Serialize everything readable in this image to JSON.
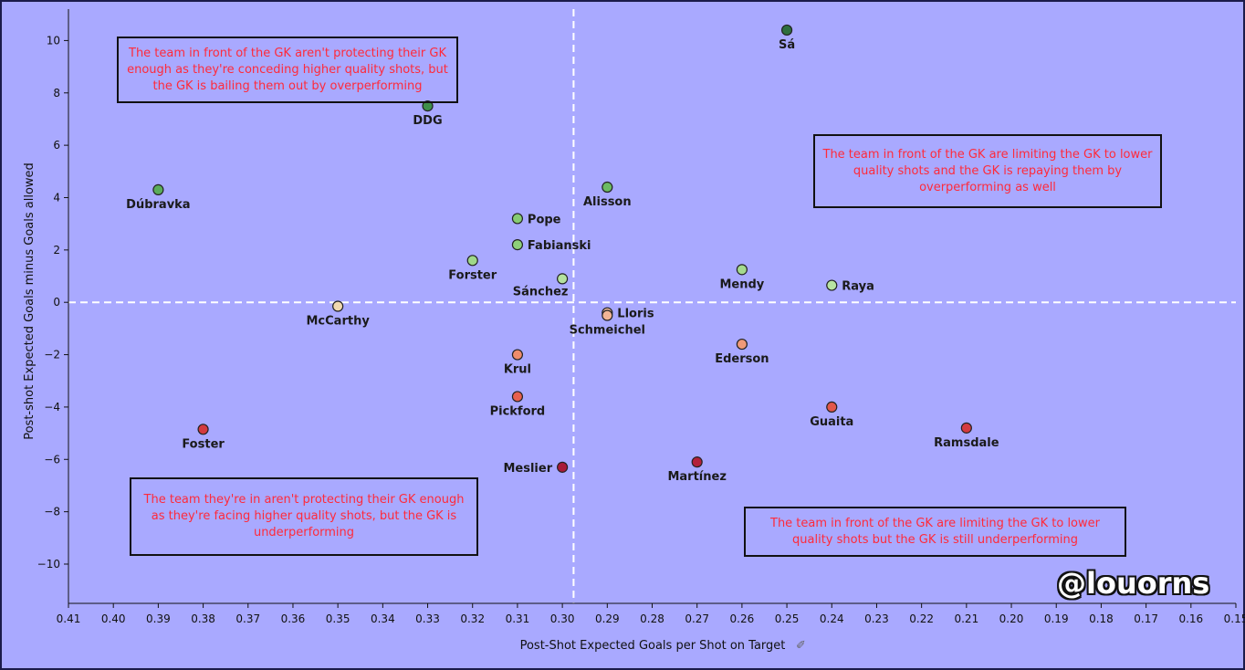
{
  "chart_data": {
    "type": "scatter",
    "title": "",
    "xlabel": "Post-Shot Expected Goals per Shot on Target",
    "ylabel": "Post-shot Expected Goals minus Goals allowed",
    "xlim": [
      0.41,
      0.15
    ],
    "ylim": [
      -11.5,
      11.2
    ],
    "x_reversed": true,
    "x_ticks": [
      0.41,
      0.4,
      0.39,
      0.38,
      0.37,
      0.36,
      0.35,
      0.34,
      0.33,
      0.32,
      0.31,
      0.3,
      0.29,
      0.28,
      0.27,
      0.26,
      0.25,
      0.24,
      0.23,
      0.22,
      0.21,
      0.2,
      0.19,
      0.18,
      0.17,
      0.16,
      0.15
    ],
    "x_tick_labels": [
      "0.41",
      "0.40",
      "0.39",
      "0.38",
      "0.37",
      "0.36",
      "0.35",
      "0.34",
      "0.33",
      "0.32",
      "0.31",
      "0.30",
      "0.29",
      "0.28",
      "0.27",
      "0.26",
      "0.25",
      "0.24",
      "0.23",
      "0.22",
      "0.21",
      "0.20",
      "0.19",
      "0.18",
      "0.17",
      "0.16",
      "0.15"
    ],
    "y_ticks": [
      10,
      8,
      6,
      4,
      2,
      0,
      -2,
      -4,
      -6,
      -8,
      -10
    ],
    "y_tick_labels": [
      "10",
      "8",
      "6",
      "4",
      "2",
      "0",
      "−2",
      "−4",
      "−6",
      "−8",
      "−10"
    ],
    "reference_lines": {
      "x": 0.2975,
      "y": 0
    },
    "points": [
      {
        "name": "Sá",
        "x": 0.25,
        "y": 10.4,
        "color": "#2e6e3e",
        "label_pos": "below"
      },
      {
        "name": "DDG",
        "x": 0.33,
        "y": 7.5,
        "color": "#3f8f4a",
        "label_pos": "below"
      },
      {
        "name": "Dúbravka",
        "x": 0.39,
        "y": 4.3,
        "color": "#5aac5a",
        "label_pos": "below"
      },
      {
        "name": "Alisson",
        "x": 0.29,
        "y": 4.4,
        "color": "#6cbb62",
        "label_pos": "below"
      },
      {
        "name": "Pope",
        "x": 0.31,
        "y": 3.2,
        "color": "#86cc72",
        "label_pos": "right"
      },
      {
        "name": "Fabianski",
        "x": 0.31,
        "y": 2.2,
        "color": "#8ed07a",
        "label_pos": "right"
      },
      {
        "name": "Forster",
        "x": 0.32,
        "y": 1.6,
        "color": "#9fd88a",
        "label_pos": "below"
      },
      {
        "name": "Sánchez",
        "x": 0.3,
        "y": 0.9,
        "color": "#b4e29e",
        "label_pos": "below-left"
      },
      {
        "name": "Mendy",
        "x": 0.26,
        "y": 1.25,
        "color": "#a4da8e",
        "label_pos": "below"
      },
      {
        "name": "Raya",
        "x": 0.24,
        "y": 0.65,
        "color": "#b8e4a2",
        "label_pos": "right"
      },
      {
        "name": "McCarthy",
        "x": 0.35,
        "y": -0.15,
        "color": "#f1d9b0",
        "label_pos": "below"
      },
      {
        "name": "Lloris",
        "x": 0.29,
        "y": -0.4,
        "color": "#f4bfa0",
        "label_pos": "right"
      },
      {
        "name": "Schmeichel",
        "x": 0.29,
        "y": -0.5,
        "color": "#f2b596",
        "label_pos": "below"
      },
      {
        "name": "Ederson",
        "x": 0.26,
        "y": -1.6,
        "color": "#f09a78",
        "label_pos": "below"
      },
      {
        "name": "Krul",
        "x": 0.31,
        "y": -2.0,
        "color": "#ef8c6c",
        "label_pos": "below"
      },
      {
        "name": "Pickford",
        "x": 0.31,
        "y": -3.6,
        "color": "#e7604e",
        "label_pos": "below"
      },
      {
        "name": "Guaita",
        "x": 0.24,
        "y": -4.0,
        "color": "#e2574a",
        "label_pos": "below"
      },
      {
        "name": "Foster",
        "x": 0.38,
        "y": -4.85,
        "color": "#d33a3f",
        "label_pos": "below"
      },
      {
        "name": "Ramsdale",
        "x": 0.21,
        "y": -4.8,
        "color": "#d43b40",
        "label_pos": "below"
      },
      {
        "name": "Martínez",
        "x": 0.27,
        "y": -6.1,
        "color": "#b3203a",
        "label_pos": "below"
      },
      {
        "name": "Meslier",
        "x": 0.3,
        "y": -6.3,
        "color": "#a81b38",
        "label_pos": "left"
      }
    ]
  },
  "annotations": {
    "top_left": "The team in front of the GK aren't protecting their GK enough as they're conceding higher quality shots, but the GK is bailing them out by overperforming",
    "top_right": "The team in front of the GK are limiting the GK to lower quality shots and the GK is repaying them by overperforming as well",
    "bottom_left": "The team they're in aren't protecting their GK enough as they're facing higher quality shots, but the GK is underperforming",
    "bottom_right": "The team in front of the GK are limiting the GK to lower quality shots but the GK is still underperforming"
  },
  "watermark": "@louorns",
  "colors": {
    "background": "#a9a9ff",
    "annotation_text": "#ff2a3a",
    "reference_line": "#ffffff"
  }
}
